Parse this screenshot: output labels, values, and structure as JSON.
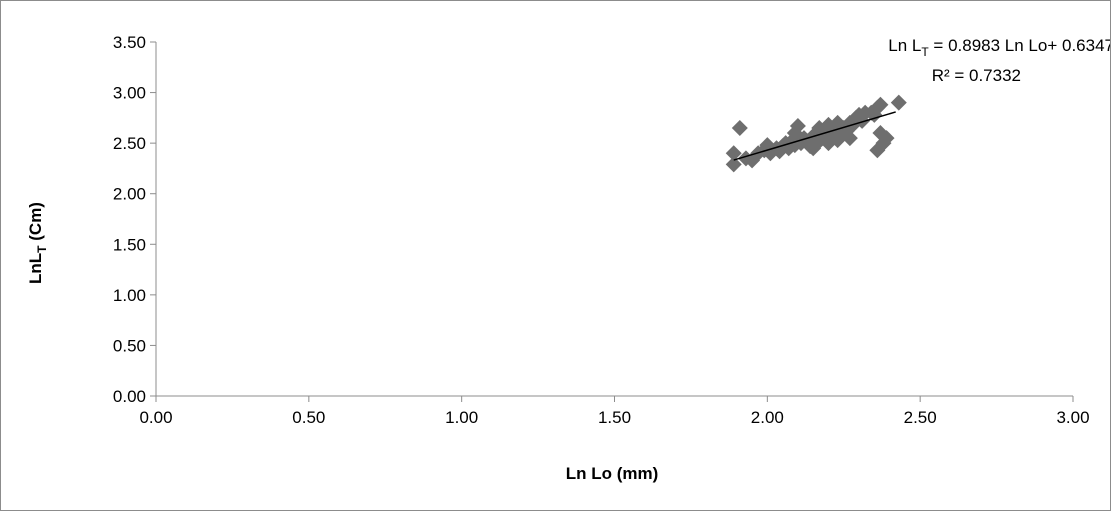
{
  "chart_data": {
    "type": "scatter",
    "title": "",
    "xlabel": "Ln Lo (mm)",
    "ylabel_main": "LnL",
    "ylabel_sub": "T",
    "ylabel_tail": " (Cm)",
    "xlim": [
      0,
      3
    ],
    "ylim": [
      0,
      3.5
    ],
    "x_ticks": [
      "0.00",
      "0.50",
      "1.00",
      "1.50",
      "2.00",
      "2.50",
      "3.00"
    ],
    "y_ticks": [
      "0.00",
      "0.50",
      "1.00",
      "1.50",
      "2.00",
      "2.50",
      "3.00",
      "3.50"
    ],
    "grid": false,
    "legend": "none",
    "marker_color": "#6e6e6e",
    "trendline_color": "#000000",
    "trendline": {
      "slope": 0.8983,
      "intercept": 0.6347,
      "x_range": [
        1.89,
        2.42
      ]
    },
    "equation": {
      "line1_pre": "Ln L",
      "line1_sub": "T",
      "line1_post": " = 0.8983 Ln Lo+ 0.6347",
      "line2": "R² = 0.7332"
    },
    "points": [
      {
        "x": 1.89,
        "y": 2.29
      },
      {
        "x": 1.89,
        "y": 2.4
      },
      {
        "x": 1.91,
        "y": 2.65
      },
      {
        "x": 1.93,
        "y": 2.35
      },
      {
        "x": 1.95,
        "y": 2.33
      },
      {
        "x": 1.97,
        "y": 2.4
      },
      {
        "x": 1.99,
        "y": 2.43
      },
      {
        "x": 2.0,
        "y": 2.48
      },
      {
        "x": 2.01,
        "y": 2.4
      },
      {
        "x": 2.03,
        "y": 2.45
      },
      {
        "x": 2.04,
        "y": 2.42
      },
      {
        "x": 2.05,
        "y": 2.47
      },
      {
        "x": 2.06,
        "y": 2.5
      },
      {
        "x": 2.07,
        "y": 2.45
      },
      {
        "x": 2.08,
        "y": 2.52
      },
      {
        "x": 2.09,
        "y": 2.48
      },
      {
        "x": 2.09,
        "y": 2.6
      },
      {
        "x": 2.1,
        "y": 2.67
      },
      {
        "x": 2.11,
        "y": 2.5
      },
      {
        "x": 2.12,
        "y": 2.55
      },
      {
        "x": 2.13,
        "y": 2.52
      },
      {
        "x": 2.14,
        "y": 2.47
      },
      {
        "x": 2.15,
        "y": 2.57
      },
      {
        "x": 2.15,
        "y": 2.45
      },
      {
        "x": 2.16,
        "y": 2.6
      },
      {
        "x": 2.17,
        "y": 2.52
      },
      {
        "x": 2.17,
        "y": 2.65
      },
      {
        "x": 2.18,
        "y": 2.55
      },
      {
        "x": 2.19,
        "y": 2.6
      },
      {
        "x": 2.2,
        "y": 2.5
      },
      {
        "x": 2.2,
        "y": 2.68
      },
      {
        "x": 2.21,
        "y": 2.58
      },
      {
        "x": 2.22,
        "y": 2.62
      },
      {
        "x": 2.23,
        "y": 2.53
      },
      {
        "x": 2.23,
        "y": 2.7
      },
      {
        "x": 2.24,
        "y": 2.6
      },
      {
        "x": 2.25,
        "y": 2.65
      },
      {
        "x": 2.26,
        "y": 2.62
      },
      {
        "x": 2.27,
        "y": 2.55
      },
      {
        "x": 2.27,
        "y": 2.7
      },
      {
        "x": 2.28,
        "y": 2.68
      },
      {
        "x": 2.29,
        "y": 2.75
      },
      {
        "x": 2.3,
        "y": 2.78
      },
      {
        "x": 2.31,
        "y": 2.72
      },
      {
        "x": 2.32,
        "y": 2.8
      },
      {
        "x": 2.34,
        "y": 2.8
      },
      {
        "x": 2.35,
        "y": 2.78
      },
      {
        "x": 2.36,
        "y": 2.85
      },
      {
        "x": 2.36,
        "y": 2.43
      },
      {
        "x": 2.37,
        "y": 2.88
      },
      {
        "x": 2.37,
        "y": 2.6
      },
      {
        "x": 2.38,
        "y": 2.5
      },
      {
        "x": 2.39,
        "y": 2.55
      },
      {
        "x": 2.43,
        "y": 2.9
      }
    ]
  }
}
